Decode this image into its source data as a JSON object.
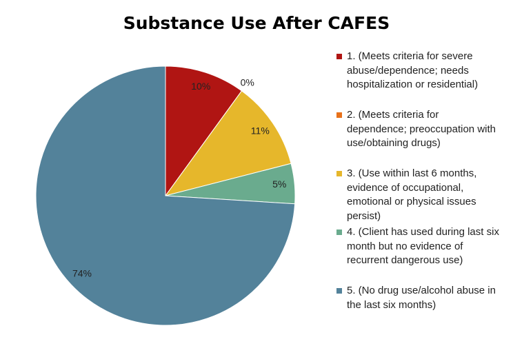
{
  "chart_data": {
    "type": "pie",
    "title": "Substance Use After CAFES",
    "categories": [
      "1. (Meets criteria for severe abuse/dependence; needs hospitalization or residential)",
      "2. (Meets criteria for dependence; preoccupation with use/obtaining drugs)",
      "3. (Use within last 6 months, evidence of occupational, emotional or physical issues persist)",
      "4. (Client has used during last six month but no evidence of recurrent dangerous use)",
      "5. (No drug use/alcohol abuse in the last six months)"
    ],
    "values": [
      10,
      0,
      11,
      5,
      74
    ],
    "value_labels": [
      "10%",
      "0%",
      "11%",
      "5%",
      "74%"
    ],
    "colors": [
      "#b01513",
      "#e8711a",
      "#e6b72b",
      "#6aab8e",
      "#53829a"
    ],
    "legend": "right"
  }
}
